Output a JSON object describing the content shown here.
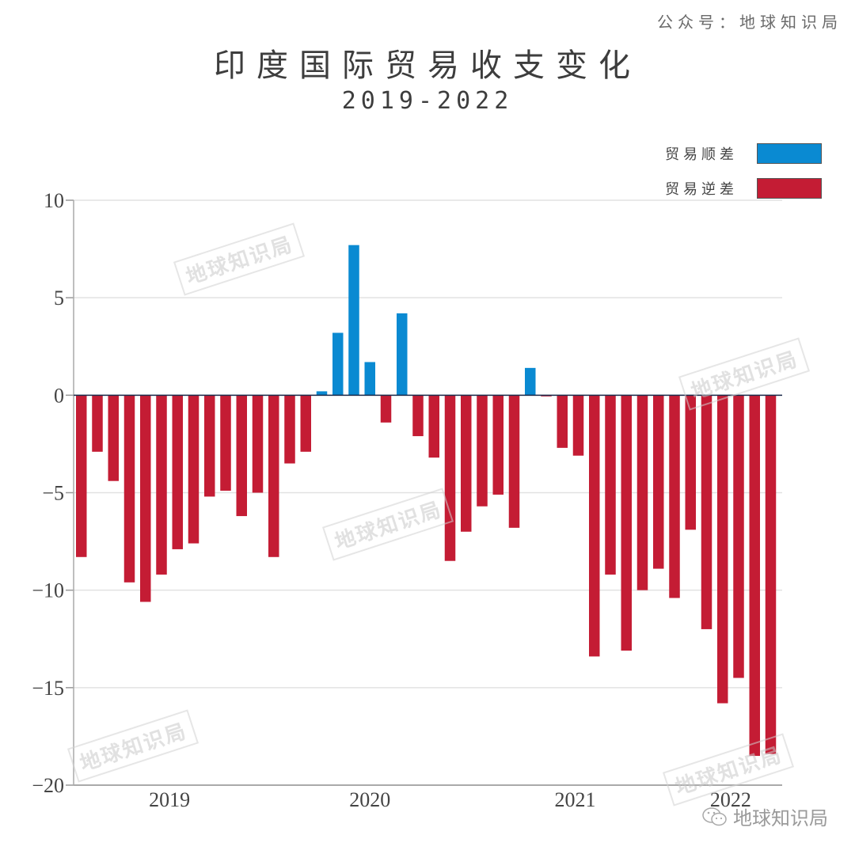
{
  "source": "公众号：地球知识局",
  "watermark_text": "地球知识局",
  "logo_text": "地球知识局",
  "legend": [
    {
      "label": "贸易顺差",
      "color": "#0a8ad2"
    },
    {
      "label": "贸易逆差",
      "color": "#c41c34"
    }
  ],
  "chart_data": {
    "type": "bar",
    "title": "印度国际贸易收支变化",
    "subtitle": "2019-2022",
    "xlabel": "",
    "ylabel": "",
    "ylim": [
      -20,
      10
    ],
    "yticks": [
      10,
      5,
      0,
      -5,
      -10,
      -15,
      -20
    ],
    "grid": true,
    "legend_position": "top-right",
    "xtick_labels": [
      {
        "label": "2019",
        "index": 5.5
      },
      {
        "label": "2020",
        "index": 18
      },
      {
        "label": "2021",
        "index": 30.8
      },
      {
        "label": "2022",
        "index": 40.5
      }
    ],
    "positive_color": "#0a8ad2",
    "negative_color": "#c41c34",
    "series": [
      {
        "name": "贸易收支",
        "values": [
          -8.3,
          -2.9,
          -4.4,
          -9.6,
          -10.6,
          -9.2,
          -7.9,
          -7.6,
          -5.2,
          -4.9,
          -6.2,
          -5.0,
          -8.3,
          -3.5,
          -2.9,
          0.2,
          3.2,
          7.7,
          1.7,
          -1.4,
          4.2,
          -2.1,
          -3.2,
          -8.5,
          -7.0,
          -5.7,
          -5.1,
          -6.8,
          1.4,
          -0.05,
          -2.7,
          -3.1,
          -13.4,
          -9.2,
          -13.1,
          -10.0,
          -8.9,
          -10.4,
          -6.9,
          -12.0,
          -15.8,
          -14.5,
          -18.5,
          -18.4
        ]
      }
    ]
  }
}
